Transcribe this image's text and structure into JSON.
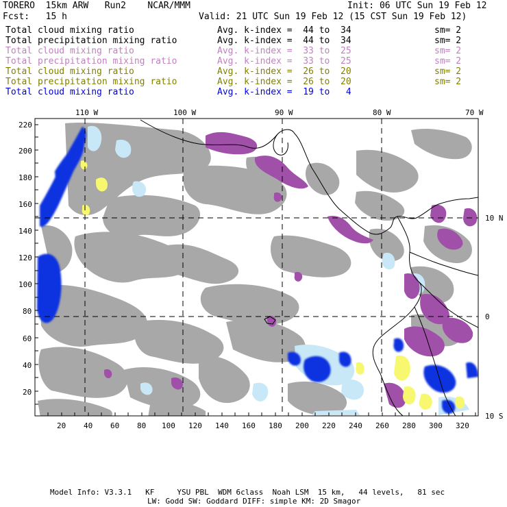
{
  "header": {
    "model": "TORERO  15km ARW   Run2    NCAR/MMM",
    "init": "Init: 06 UTC Sun 19 Feb 12",
    "fcst": "Fcst:   15 h",
    "valid": "Valid: 21 UTC Sun 19 Feb 12 (15 CST Sun 19 Feb 12)"
  },
  "legend": [
    {
      "field": "Total cloud mixing ratio",
      "avg": "Avg. k-index =  44 to  34",
      "sm": "sm= 2",
      "color": "#000000"
    },
    {
      "field": "Total precipitation mixing ratio",
      "avg": "Avg. k-index =  44 to  34",
      "sm": "sm= 2",
      "color": "#000000"
    },
    {
      "field": "Total cloud mixing ratio",
      "avg": "Avg. k-index =  33 to  25",
      "sm": "sm= 2",
      "color": "#c080c0"
    },
    {
      "field": "Total precipitation mixing ratio",
      "avg": "Avg. k-index =  33 to  25",
      "sm": "sm= 2",
      "color": "#c080c0"
    },
    {
      "field": "Total cloud mixing ratio",
      "avg": "Avg. k-index =  26 to  20",
      "sm": "sm= 2",
      "color": "#808000"
    },
    {
      "field": "Total precipitation mixing ratio",
      "avg": "Avg. k-index =  26 to  20",
      "sm": "sm= 2",
      "color": "#808000"
    },
    {
      "field": "Total cloud mixing ratio",
      "avg": "Avg. k-index =  19 to   4",
      "sm": null,
      "color": "#0000e0"
    }
  ],
  "map": {
    "top_labels": [
      "110 W",
      "100 W",
      "90 W",
      "80 W",
      "70 W"
    ],
    "right_labels": [
      "10 N",
      "0",
      "10 S"
    ],
    "left_ticks": [
      "220",
      "200",
      "180",
      "160",
      "140",
      "120",
      "100",
      "80",
      "60",
      "40",
      "20"
    ],
    "bottom_ticks": [
      "20",
      "40",
      "60",
      "80",
      "100",
      "120",
      "140",
      "160",
      "180",
      "200",
      "220",
      "240",
      "260",
      "280",
      "300",
      "320"
    ],
    "colors": {
      "gray": "#a8a8a8",
      "purple": "#a050a8",
      "light_blue": "#c8e8f8",
      "blue": "#1030e0",
      "yellow": "#f8f870"
    }
  },
  "footer": {
    "line1": "Model Info: V3.3.1   KF     YSU PBL  WDM 6class  Noah LSM  15 km,   44 levels,   81 sec",
    "line2": "LW: Godd SW: Goddard DIFF: simple KM: 2D Smagor"
  }
}
